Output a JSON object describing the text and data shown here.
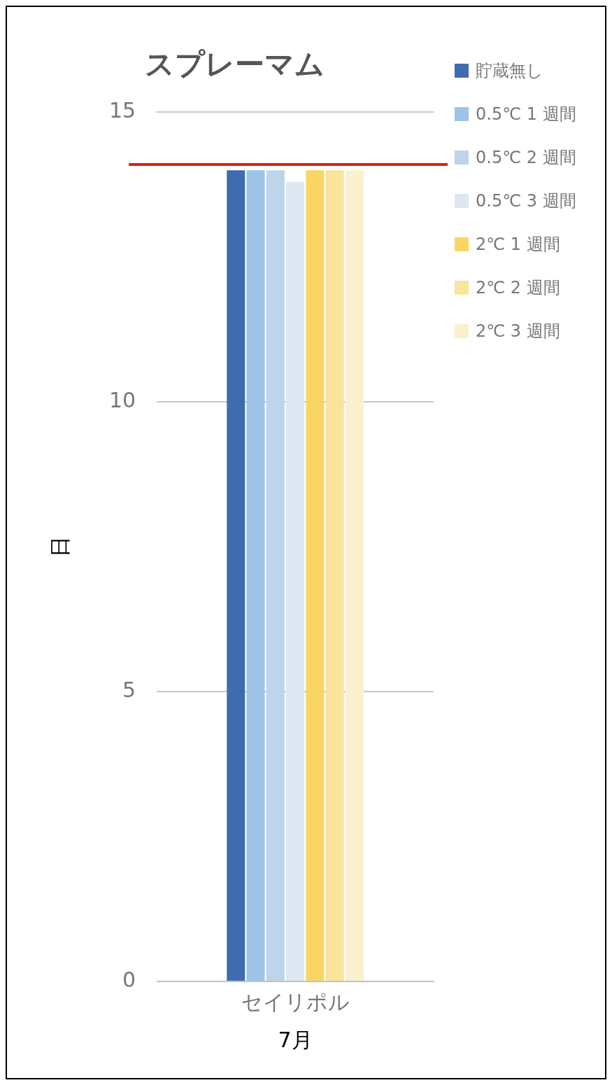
{
  "chart_data": {
    "type": "bar",
    "title": "スプレーマム",
    "xlabel": "7月",
    "ylabel": "日",
    "categories": [
      "セイリポル"
    ],
    "series": [
      {
        "name": "貯蔵無し",
        "color": "#3f6cb0",
        "values": [
          14.0
        ]
      },
      {
        "name": "0.5℃ 1 週間",
        "color": "#9dc3e6",
        "values": [
          14.0
        ]
      },
      {
        "name": "0.5℃ 2 週間",
        "color": "#bdd4ea",
        "values": [
          14.0
        ]
      },
      {
        "name": "0.5℃ 3 週間",
        "color": "#dce7f2",
        "values": [
          13.8
        ]
      },
      {
        "name": "2℃ 1 週間",
        "color": "#f9d664",
        "values": [
          14.0
        ]
      },
      {
        "name": "2℃ 2 週間",
        "color": "#f9e49c",
        "values": [
          14.0
        ]
      },
      {
        "name": "2℃ 3 週間",
        "color": "#fbefcd",
        "values": [
          14.0
        ]
      }
    ],
    "ylim": [
      0,
      15
    ],
    "yticks": [
      0,
      5,
      10,
      15
    ],
    "grid": "y",
    "legend": "right",
    "ref_lines": [
      {
        "axis": "y",
        "value": 14.1,
        "color": "#e0200f"
      }
    ]
  }
}
